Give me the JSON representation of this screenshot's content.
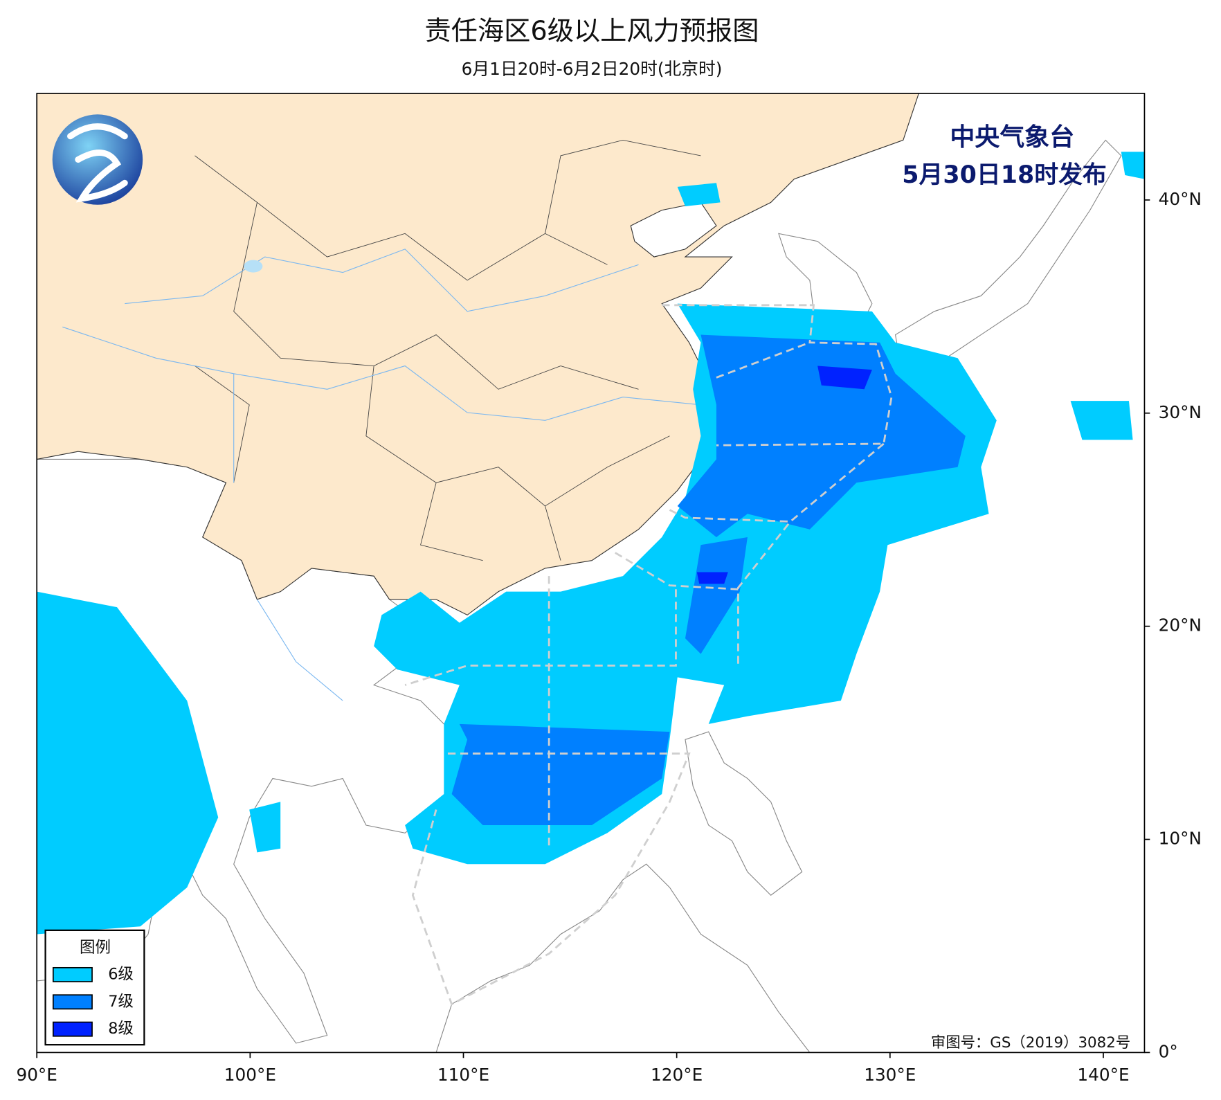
{
  "title": "责任海区6级以上风力预报图",
  "subtitle": "6月1日20时-6月2日20时(北京时)",
  "issuer": {
    "name": "中央气象台",
    "time": "5月30日18时发布"
  },
  "legend": {
    "title": "图例",
    "items": [
      {
        "label": "6级",
        "color": "#00ccff"
      },
      {
        "label": "7级",
        "color": "#0080ff"
      },
      {
        "label": "8级",
        "color": "#0022ff"
      }
    ]
  },
  "approval": "审图号：GS（2019）3082号",
  "map": {
    "xlim": [
      90,
      141.93
    ],
    "ylim": [
      0,
      45
    ],
    "xticks": [
      {
        "value": 90,
        "label": "90°E"
      },
      {
        "value": 100,
        "label": "100°E"
      },
      {
        "value": 110,
        "label": "110°E"
      },
      {
        "value": 120,
        "label": "120°E"
      },
      {
        "value": 130,
        "label": "130°E"
      },
      {
        "value": 140,
        "label": "140°E"
      }
    ],
    "yticks": [
      {
        "value": 0,
        "label": "0°"
      },
      {
        "value": 10,
        "label": "10°N"
      },
      {
        "value": 20,
        "label": "20°N"
      },
      {
        "value": 30,
        "label": "30°N"
      },
      {
        "value": 40,
        "label": "40°N"
      }
    ]
  }
}
